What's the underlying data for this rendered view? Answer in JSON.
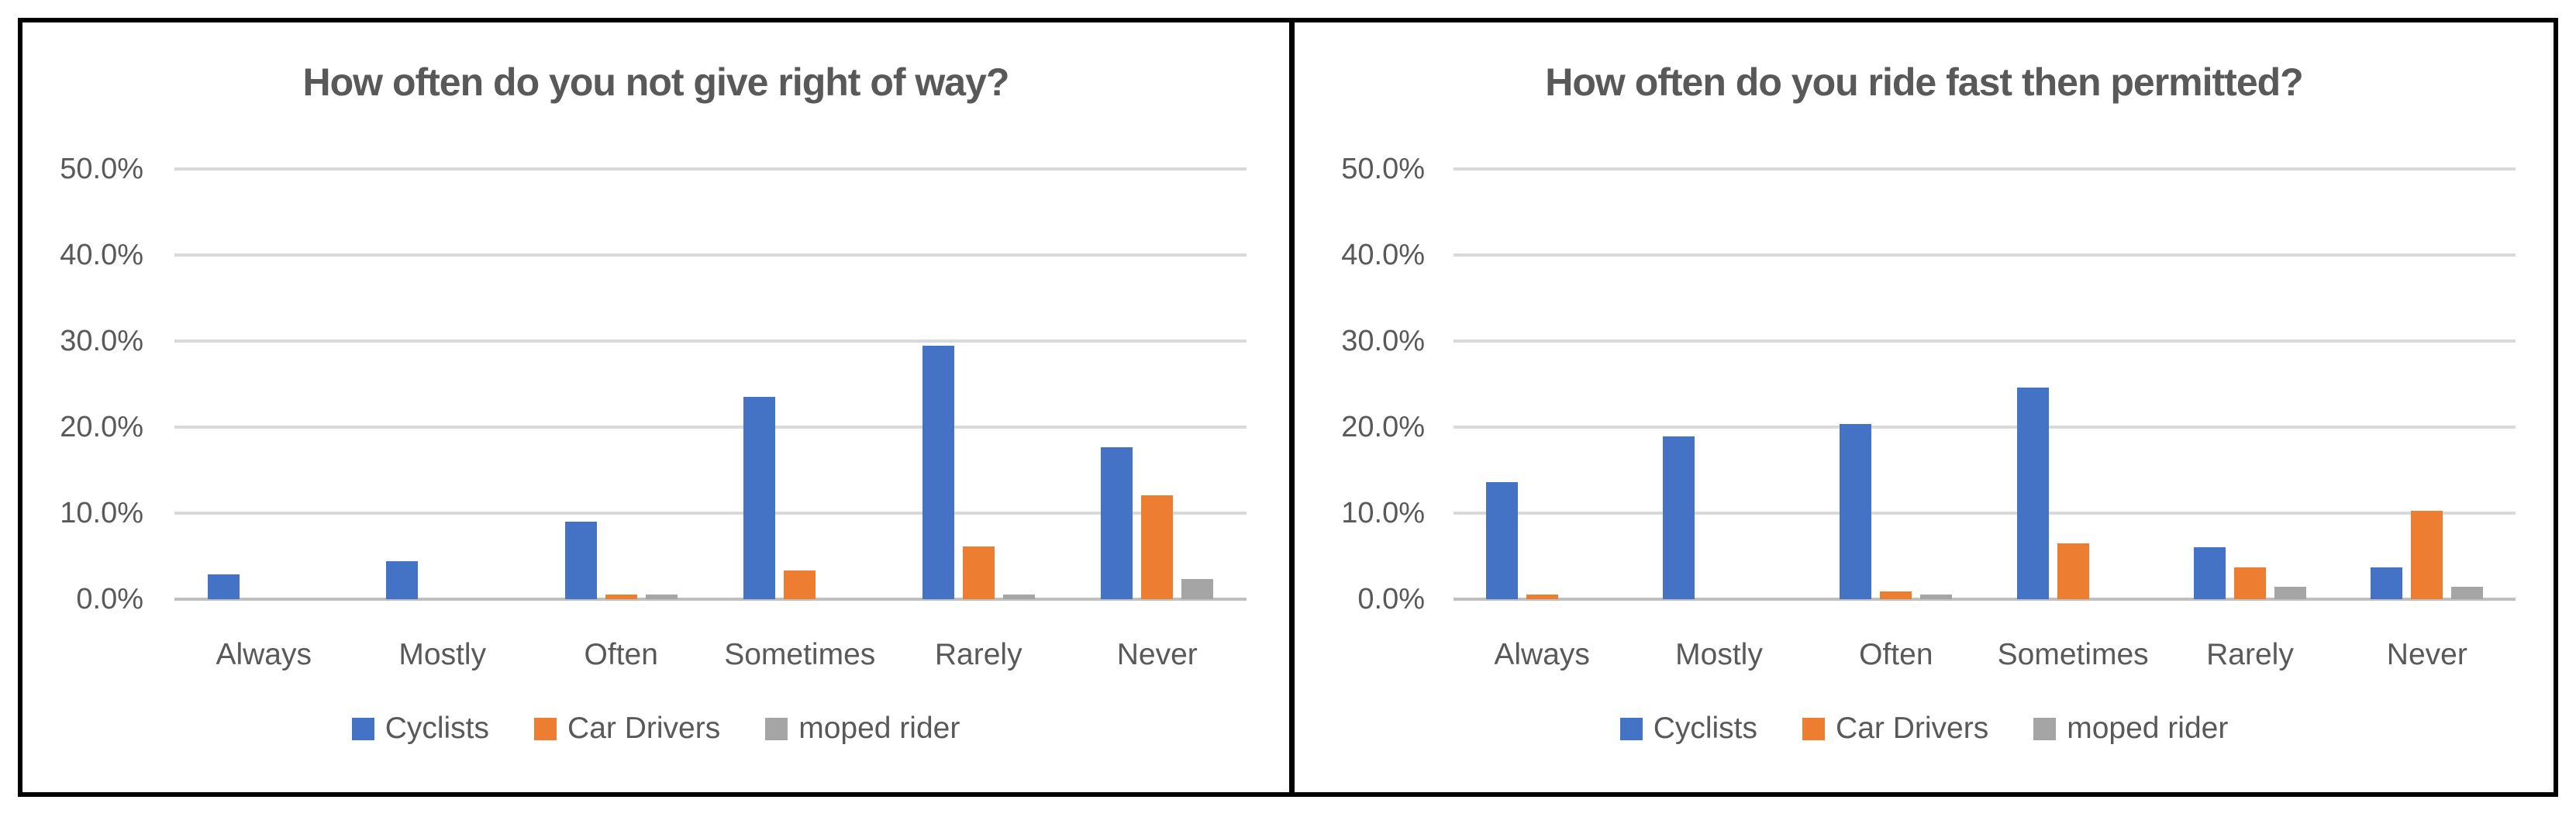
{
  "figure": {
    "border_color": "#000000",
    "background_color": "#ffffff",
    "text_color": "#595959",
    "gridline_color": "#d9d9d9",
    "axis_line_color": "#bfbfbf"
  },
  "chart_data": [
    {
      "type": "bar",
      "title": "How often do you not give right of way?",
      "categories": [
        "Always",
        "Mostly",
        "Often",
        "Sometimes",
        "Rarely",
        "Never"
      ],
      "series": [
        {
          "name": "Cyclists",
          "color": "#4472C4",
          "values": [
            2.9,
            4.4,
            9.0,
            23.5,
            29.5,
            17.7
          ]
        },
        {
          "name": "Car Drivers",
          "color": "#ED7D31",
          "values": [
            0,
            0,
            0.5,
            3.3,
            6.1,
            12.1
          ]
        },
        {
          "name": "moped rider",
          "color": "#A5A5A5",
          "values": [
            0,
            0,
            0.5,
            0,
            0.5,
            2.3
          ]
        }
      ],
      "xlabel": "",
      "ylabel": "",
      "ylim": [
        0,
        50
      ],
      "y_ticks": [
        "0.0%",
        "10.0%",
        "20.0%",
        "30.0%",
        "40.0%",
        "50.0%"
      ],
      "grid": true,
      "legend_position": "bottom"
    },
    {
      "type": "bar",
      "title": "How often do you ride fast then permitted?",
      "categories": [
        "Always",
        "Mostly",
        "Often",
        "Sometimes",
        "Rarely",
        "Never"
      ],
      "series": [
        {
          "name": "Cyclists",
          "color": "#4472C4",
          "values": [
            13.6,
            18.9,
            20.4,
            24.6,
            6.0,
            3.7
          ]
        },
        {
          "name": "Car Drivers",
          "color": "#ED7D31",
          "values": [
            0.5,
            0,
            0.9,
            6.5,
            3.7,
            10.3
          ]
        },
        {
          "name": "moped rider",
          "color": "#A5A5A5",
          "values": [
            0,
            0,
            0.5,
            0,
            1.4,
            1.4
          ]
        }
      ],
      "xlabel": "",
      "ylabel": "",
      "ylim": [
        0,
        50
      ],
      "y_ticks": [
        "0.0%",
        "10.0%",
        "20.0%",
        "30.0%",
        "40.0%",
        "50.0%"
      ],
      "grid": true,
      "legend_position": "bottom"
    }
  ]
}
